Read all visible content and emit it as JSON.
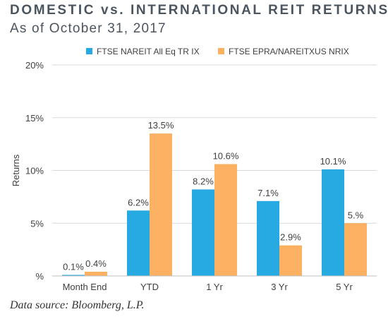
{
  "title": "DOMESTIC vs. INTERNATIONAL REIT RETURNS",
  "subtitle": "As of October 31, 2017",
  "source": "Data source: Bloomberg, L.P.",
  "colors": {
    "series1": "#27aae1",
    "series2": "#fbb161",
    "text": "#404040",
    "grid": "#d9d9d9"
  },
  "chart_data": {
    "type": "bar",
    "categories": [
      "Month End",
      "YTD",
      "1 Yr",
      "3 Yr",
      "5 Yr"
    ],
    "series": [
      {
        "name": "FTSE NAREIT All Eq TR IX",
        "values": [
          0.1,
          6.2,
          8.2,
          7.1,
          10.1
        ],
        "labels": [
          "0.1%",
          "6.2%",
          "8.2%",
          "7.1%",
          "10.1%"
        ]
      },
      {
        "name": "FTSE EPRA/NAREITXUS NRIX",
        "values": [
          0.4,
          13.5,
          10.6,
          2.9,
          5.0
        ],
        "labels": [
          "0.4%",
          "13.5%",
          "10.6%",
          "2.9%",
          "5.%"
        ]
      }
    ],
    "ylabel": "Returns",
    "ylim": [
      0,
      20
    ],
    "yticks": [
      0,
      5,
      10,
      15,
      20
    ],
    "ytick_labels": [
      "%",
      "5%",
      "10%",
      "15%",
      "20%"
    ],
    "grid": true,
    "legend_position": "top"
  }
}
